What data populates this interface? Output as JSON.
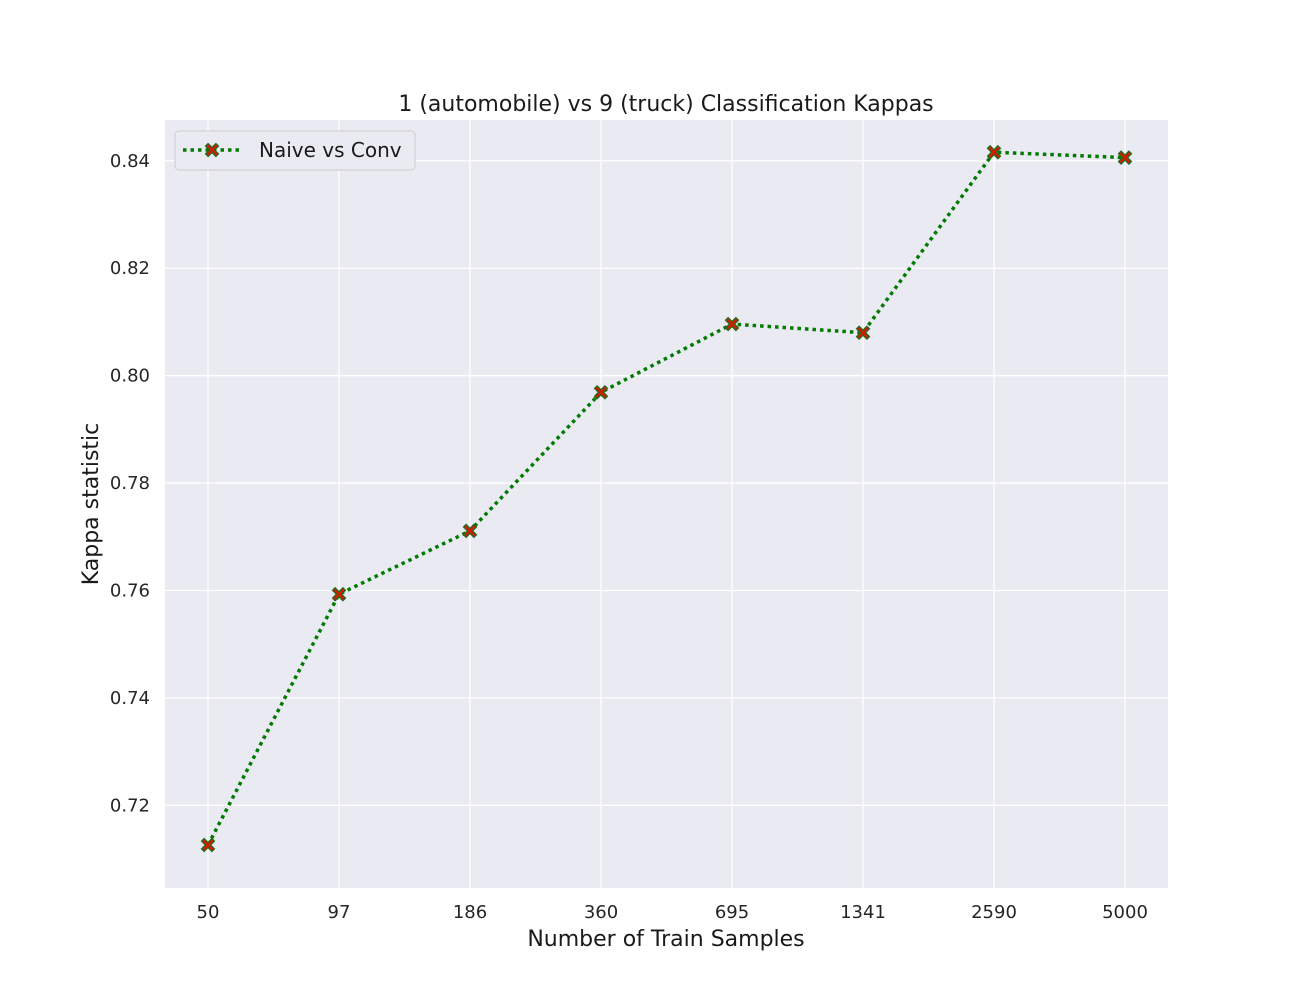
{
  "chart_data": {
    "type": "line",
    "title": "1 (automobile) vs 9 (truck) Classification Kappas",
    "xlabel": "Number of Train Samples",
    "ylabel": "Kappa statistic",
    "categories": [
      "50",
      "97",
      "186",
      "360",
      "695",
      "1341",
      "2590",
      "5000"
    ],
    "series": [
      {
        "name": "Naive vs Conv",
        "values": [
          0.7126,
          0.7593,
          0.7711,
          0.7969,
          0.8096,
          0.808,
          0.8416,
          0.8406
        ],
        "line_color": "#007a00",
        "line_style": "dotted",
        "marker": "X",
        "marker_color": "#cc1f00",
        "marker_edge_color": "#1f6b1f"
      }
    ],
    "ylim": [
      0.7046,
      0.8476
    ],
    "yticks": [
      0.72,
      0.74,
      0.76,
      0.78,
      0.8,
      0.82,
      0.84
    ],
    "ytick_labels": [
      "0.72",
      "0.74",
      "0.76",
      "0.78",
      "0.80",
      "0.82",
      "0.84"
    ],
    "grid": true,
    "legend_position": "top-left",
    "background_color": "#eaeaf2",
    "grid_color": "#ffffff"
  }
}
